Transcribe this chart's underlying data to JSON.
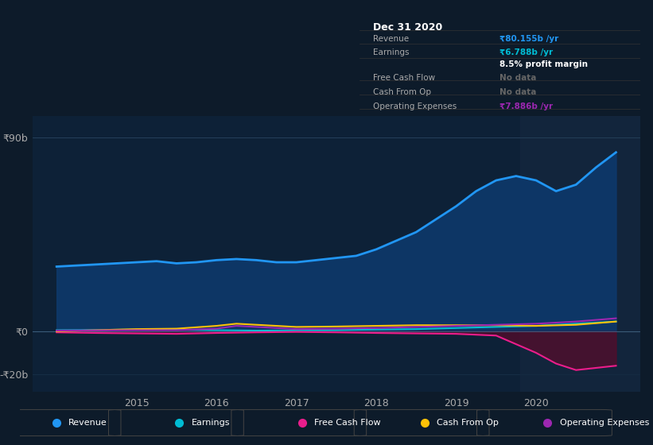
{
  "bg_color": "#0d1b2a",
  "plot_bg_color": "#0d2137",
  "grid_color": "#1e3a52",
  "title_label": "Dec 31 2020",
  "info_box": {
    "Revenue": "₹80.155b /yr",
    "Earnings": "₹6.788b /yr",
    "profit_margin": "8.5% profit margin",
    "Free Cash Flow": "No data",
    "Cash From Op": "No data",
    "Operating Expenses": "₹7.886b /yr"
  },
  "y_ticks": [
    "₹90b",
    "₹0",
    "-₹20b"
  ],
  "y_tick_vals": [
    90,
    0,
    -20
  ],
  "x_ticks": [
    "2015",
    "2016",
    "2017",
    "2018",
    "2019",
    "2020"
  ],
  "ylim": [
    -28,
    100
  ],
  "xlim": [
    2013.7,
    2021.3
  ],
  "revenue_color": "#2196f3",
  "revenue_fill": "#0d3a6e",
  "earnings_color": "#00bcd4",
  "fcf_color": "#e91e8c",
  "fcf_fill": "#5a0a2a",
  "cashop_color": "#ffc107",
  "opex_color": "#9c27b0",
  "legend_bg": "#0d1b2a",
  "revenue": {
    "x": [
      2014.0,
      2014.25,
      2014.5,
      2014.75,
      2015.0,
      2015.25,
      2015.5,
      2015.75,
      2016.0,
      2016.25,
      2016.5,
      2016.75,
      2017.0,
      2017.25,
      2017.5,
      2017.75,
      2018.0,
      2018.25,
      2018.5,
      2018.75,
      2019.0,
      2019.25,
      2019.5,
      2019.75,
      2020.0,
      2020.25,
      2020.5,
      2020.75,
      2021.0
    ],
    "y": [
      30,
      30.5,
      31,
      31.5,
      32,
      32.5,
      31.5,
      32,
      33,
      33.5,
      33,
      32,
      32,
      33,
      34,
      35,
      38,
      42,
      46,
      52,
      58,
      65,
      70,
      72,
      70,
      65,
      68,
      76,
      83
    ]
  },
  "earnings": {
    "x": [
      2014.0,
      2014.5,
      2015.0,
      2015.5,
      2016.0,
      2016.5,
      2017.0,
      2017.5,
      2018.0,
      2018.5,
      2019.0,
      2019.5,
      2020.0,
      2020.5,
      2021.0
    ],
    "y": [
      0.5,
      0.6,
      0.8,
      0.7,
      0.5,
      0.3,
      0.4,
      0.5,
      0.8,
      1.0,
      1.5,
      2.0,
      2.5,
      3.5,
      4.5
    ]
  },
  "fcf": {
    "x": [
      2014.0,
      2014.5,
      2015.0,
      2015.5,
      2016.0,
      2016.5,
      2017.0,
      2017.5,
      2018.0,
      2018.5,
      2019.0,
      2019.5,
      2020.0,
      2020.25,
      2020.5,
      2020.75,
      2021.0
    ],
    "y": [
      -0.5,
      -0.8,
      -1.0,
      -1.2,
      -0.8,
      -0.5,
      -0.3,
      -0.5,
      -0.8,
      -1.0,
      -1.2,
      -2.0,
      -10,
      -15,
      -18,
      -17,
      -16
    ]
  },
  "cashop": {
    "x": [
      2014.0,
      2014.5,
      2015.0,
      2015.5,
      2016.0,
      2016.25,
      2016.5,
      2016.75,
      2017.0,
      2017.5,
      2018.0,
      2018.5,
      2019.0,
      2019.5,
      2020.0,
      2020.5,
      2021.0
    ],
    "y": [
      0.0,
      0.5,
      1.0,
      1.2,
      2.5,
      3.5,
      3.0,
      2.5,
      2.0,
      2.2,
      2.5,
      2.8,
      2.8,
      2.8,
      2.5,
      3.0,
      4.5
    ]
  },
  "opex": {
    "x": [
      2014.0,
      2014.5,
      2015.0,
      2015.5,
      2016.0,
      2016.25,
      2016.5,
      2016.75,
      2017.0,
      2017.5,
      2018.0,
      2018.5,
      2019.0,
      2019.5,
      2020.0,
      2020.5,
      2021.0
    ],
    "y": [
      0.3,
      0.4,
      0.5,
      0.5,
      1.2,
      2.5,
      2.0,
      1.5,
      1.0,
      1.2,
      1.5,
      2.0,
      2.5,
      3.0,
      3.5,
      4.5,
      6.0
    ]
  }
}
